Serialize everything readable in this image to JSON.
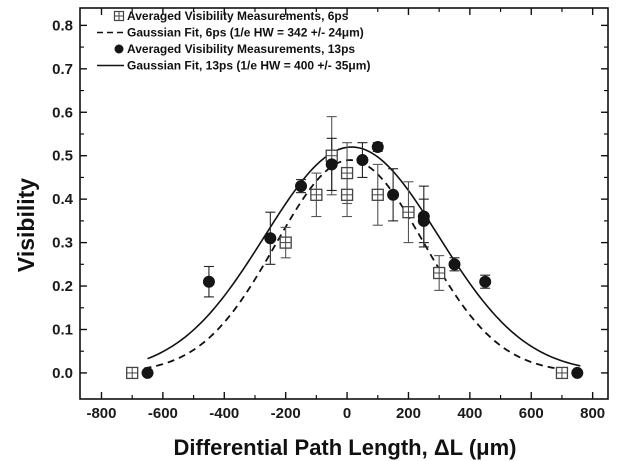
{
  "chart_data": {
    "type": "scatter",
    "xlabel": "Differential Path Length, ΔL (μm)",
    "ylabel": "Visibility",
    "xlim": [
      -870,
      850
    ],
    "ylim": [
      -0.06,
      0.84
    ],
    "xticks": [
      -800,
      -600,
      -400,
      -200,
      0,
      200,
      400,
      600,
      800
    ],
    "xtick_labels": [
      "-800",
      "-600",
      "-400",
      "-200",
      "0",
      "200",
      "400",
      "600",
      "800"
    ],
    "yticks": [
      0.0,
      0.1,
      0.2,
      0.3,
      0.4,
      0.5,
      0.6,
      0.7,
      0.8
    ],
    "ytick_labels": [
      "0.0",
      "0.1",
      "0.2",
      "0.3",
      "0.4",
      "0.5",
      "0.6",
      "0.7",
      "0.8"
    ],
    "grid": false,
    "legend_position": "top-left",
    "series": [
      {
        "name": "Averaged Visibility Measurements, 6ps",
        "kind": "points",
        "marker": "square-plus",
        "points": [
          {
            "x": -700,
            "y": 0.0,
            "err": 0.0
          },
          {
            "x": -200,
            "y": 0.3,
            "err": 0.035
          },
          {
            "x": -100,
            "y": 0.41,
            "err": 0.05
          },
          {
            "x": -50,
            "y": 0.5,
            "err": 0.09
          },
          {
            "x": 0,
            "y": 0.41,
            "err": 0.05
          },
          {
            "x": 0,
            "y": 0.46,
            "err": 0.07
          },
          {
            "x": 100,
            "y": 0.41,
            "err": 0.07
          },
          {
            "x": 200,
            "y": 0.37,
            "err": 0.07
          },
          {
            "x": 300,
            "y": 0.23,
            "err": 0.04
          },
          {
            "x": 700,
            "y": 0.0,
            "err": 0.0
          }
        ]
      },
      {
        "name": "Gaussian Fit, 6ps (1/e HW = 342 +/- 24μm)",
        "kind": "curve",
        "line": "dashed",
        "amplitude": 0.49,
        "center": 10,
        "hw": 342,
        "x_range": [
          -660,
          700
        ]
      },
      {
        "name": "Averaged Visibility Measurements, 13ps",
        "kind": "points",
        "marker": "filled-circle",
        "points": [
          {
            "x": -650,
            "y": 0.0,
            "err": 0.0
          },
          {
            "x": -450,
            "y": 0.21,
            "err": 0.035
          },
          {
            "x": -250,
            "y": 0.31,
            "err": 0.06
          },
          {
            "x": -150,
            "y": 0.43,
            "err": 0.015
          },
          {
            "x": -50,
            "y": 0.48,
            "err": 0.06
          },
          {
            "x": 50,
            "y": 0.49,
            "err": 0.04
          },
          {
            "x": 100,
            "y": 0.52,
            "err": 0.01
          },
          {
            "x": 150,
            "y": 0.41,
            "err": 0.06
          },
          {
            "x": 250,
            "y": 0.36,
            "err": 0.07
          },
          {
            "x": 250,
            "y": 0.35,
            "err": 0.05
          },
          {
            "x": 350,
            "y": 0.25,
            "err": 0.015
          },
          {
            "x": 450,
            "y": 0.21,
            "err": 0.015
          },
          {
            "x": 750,
            "y": 0.0,
            "err": 0.0
          }
        ]
      },
      {
        "name": "Gaussian Fit, 13ps (1/e HW = 400 +/- 35μm)",
        "kind": "curve",
        "line": "solid",
        "amplitude": 0.52,
        "center": 15,
        "hw": 400,
        "x_range": [
          -650,
          760
        ]
      }
    ]
  },
  "colors": {
    "ink": "#111111",
    "marker_edge": "#444444",
    "background": "#ffffff"
  }
}
